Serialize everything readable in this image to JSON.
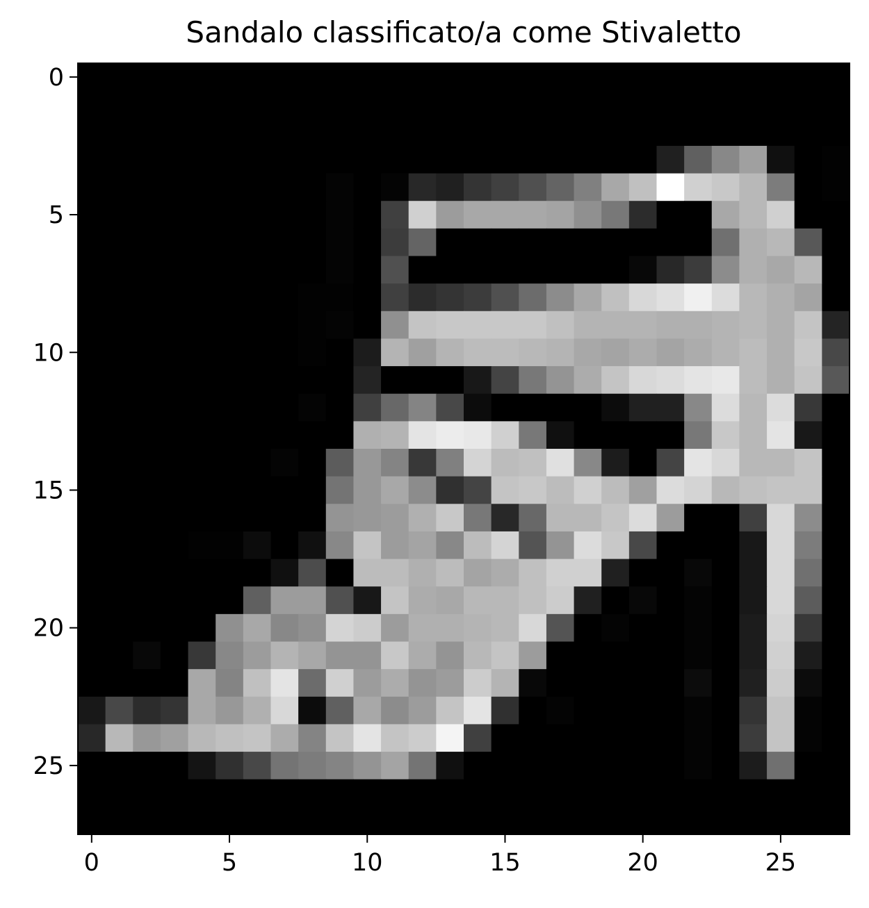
{
  "chart_data": {
    "type": "heatmap",
    "title": "Sandalo classificato/a come Stivaletto",
    "xlabel": "",
    "ylabel": "",
    "colormap": "gray",
    "vmin": 0,
    "vmax": 255,
    "xlim": [
      -0.5,
      27.5
    ],
    "ylim": [
      27.5,
      -0.5
    ],
    "x_ticks": [
      0,
      5,
      10,
      15,
      20,
      25
    ],
    "y_ticks": [
      0,
      5,
      10,
      15,
      20,
      25
    ],
    "x_tick_labels": [
      "0",
      "5",
      "10",
      "15",
      "20",
      "25"
    ],
    "y_tick_labels": [
      "0",
      "5",
      "10",
      "15",
      "20",
      "25"
    ],
    "grid": false,
    "legend": "none",
    "values": [
      [
        0,
        0,
        0,
        0,
        0,
        0,
        0,
        0,
        0,
        0,
        0,
        0,
        0,
        0,
        0,
        0,
        0,
        0,
        0,
        0,
        0,
        0,
        0,
        0,
        0,
        0,
        0,
        0
      ],
      [
        0,
        0,
        0,
        0,
        0,
        0,
        0,
        0,
        0,
        0,
        0,
        0,
        0,
        0,
        0,
        0,
        0,
        0,
        0,
        0,
        0,
        0,
        0,
        0,
        0,
        0,
        0,
        0
      ],
      [
        0,
        0,
        0,
        0,
        0,
        0,
        0,
        0,
        0,
        0,
        0,
        0,
        0,
        0,
        0,
        0,
        0,
        0,
        0,
        0,
        0,
        0,
        0,
        0,
        0,
        0,
        0,
        0
      ],
      [
        0,
        0,
        0,
        0,
        0,
        0,
        0,
        0,
        0,
        0,
        0,
        0,
        0,
        0,
        0,
        0,
        0,
        0,
        0,
        0,
        0,
        32,
        96,
        136,
        160,
        16,
        0,
        2
      ],
      [
        0,
        0,
        0,
        0,
        0,
        0,
        0,
        0,
        0,
        4,
        0,
        4,
        40,
        32,
        52,
        64,
        80,
        100,
        128,
        168,
        192,
        255,
        208,
        200,
        184,
        124,
        0,
        2
      ],
      [
        0,
        0,
        0,
        0,
        0,
        0,
        0,
        0,
        0,
        4,
        0,
        64,
        208,
        156,
        168,
        168,
        168,
        164,
        144,
        120,
        44,
        0,
        0,
        168,
        184,
        208,
        0,
        0
      ],
      [
        0,
        0,
        0,
        0,
        0,
        0,
        0,
        0,
        0,
        4,
        0,
        60,
        100,
        0,
        0,
        0,
        0,
        0,
        0,
        0,
        0,
        0,
        0,
        112,
        176,
        184,
        88,
        0
      ],
      [
        0,
        0,
        0,
        0,
        0,
        0,
        0,
        0,
        0,
        4,
        0,
        80,
        0,
        0,
        0,
        0,
        0,
        0,
        0,
        0,
        8,
        40,
        60,
        140,
        176,
        168,
        184,
        0
      ],
      [
        0,
        0,
        0,
        0,
        0,
        0,
        0,
        0,
        2,
        2,
        0,
        64,
        44,
        52,
        60,
        80,
        108,
        140,
        168,
        192,
        216,
        224,
        240,
        220,
        184,
        176,
        164,
        0
      ],
      [
        0,
        0,
        0,
        0,
        0,
        0,
        0,
        0,
        2,
        4,
        0,
        144,
        196,
        200,
        200,
        200,
        200,
        192,
        180,
        180,
        180,
        176,
        176,
        180,
        184,
        176,
        196,
        36
      ],
      [
        0,
        0,
        0,
        0,
        0,
        0,
        0,
        0,
        2,
        0,
        28,
        180,
        160,
        180,
        188,
        188,
        184,
        180,
        168,
        164,
        172,
        164,
        172,
        180,
        188,
        176,
        200,
        72
      ],
      [
        0,
        0,
        0,
        0,
        0,
        0,
        0,
        0,
        0,
        0,
        36,
        0,
        0,
        0,
        24,
        68,
        120,
        148,
        172,
        196,
        216,
        220,
        228,
        232,
        188,
        176,
        196,
        88
      ],
      [
        0,
        0,
        0,
        0,
        0,
        0,
        0,
        0,
        4,
        0,
        64,
        104,
        132,
        72,
        12,
        0,
        0,
        0,
        0,
        12,
        32,
        32,
        136,
        220,
        184,
        220,
        56,
        0
      ],
      [
        0,
        0,
        0,
        0,
        0,
        0,
        0,
        0,
        0,
        0,
        176,
        180,
        228,
        236,
        232,
        208,
        120,
        16,
        0,
        0,
        0,
        0,
        120,
        200,
        184,
        228,
        24,
        0
      ],
      [
        0,
        0,
        0,
        0,
        0,
        0,
        0,
        4,
        0,
        92,
        152,
        132,
        56,
        128,
        212,
        188,
        192,
        224,
        136,
        28,
        0,
        68,
        228,
        216,
        184,
        184,
        196,
        0
      ],
      [
        0,
        0,
        0,
        0,
        0,
        0,
        0,
        0,
        0,
        116,
        152,
        168,
        140,
        48,
        68,
        196,
        200,
        188,
        208,
        188,
        160,
        220,
        212,
        184,
        192,
        196,
        196,
        0
      ],
      [
        0,
        0,
        0,
        0,
        0,
        0,
        0,
        0,
        0,
        148,
        152,
        156,
        176,
        200,
        120,
        40,
        104,
        184,
        184,
        196,
        220,
        156,
        0,
        0,
        64,
        216,
        140,
        0
      ],
      [
        0,
        0,
        0,
        0,
        2,
        2,
        12,
        0,
        16,
        136,
        196,
        156,
        164,
        136,
        188,
        212,
        84,
        148,
        220,
        200,
        72,
        0,
        0,
        0,
        24,
        216,
        124,
        0
      ],
      [
        0,
        0,
        0,
        0,
        0,
        0,
        0,
        16,
        76,
        0,
        188,
        188,
        176,
        188,
        164,
        172,
        192,
        208,
        208,
        32,
        0,
        0,
        8,
        0,
        24,
        216,
        112,
        0
      ],
      [
        0,
        0,
        0,
        0,
        0,
        0,
        96,
        156,
        156,
        80,
        24,
        196,
        172,
        168,
        184,
        184,
        192,
        204,
        32,
        0,
        8,
        0,
        4,
        0,
        24,
        216,
        92,
        0
      ],
      [
        0,
        0,
        0,
        0,
        0,
        144,
        168,
        136,
        144,
        212,
        204,
        156,
        176,
        176,
        180,
        184,
        216,
        84,
        0,
        4,
        0,
        0,
        4,
        0,
        28,
        212,
        56,
        0
      ],
      [
        0,
        0,
        8,
        0,
        56,
        136,
        156,
        180,
        168,
        148,
        148,
        200,
        172,
        148,
        184,
        196,
        156,
        0,
        0,
        0,
        0,
        0,
        4,
        0,
        28,
        208,
        28,
        0
      ],
      [
        0,
        0,
        0,
        0,
        168,
        132,
        192,
        228,
        108,
        208,
        156,
        172,
        148,
        156,
        204,
        180,
        8,
        0,
        0,
        0,
        0,
        0,
        12,
        0,
        32,
        204,
        12,
        0
      ],
      [
        24,
        72,
        44,
        52,
        168,
        152,
        176,
        216,
        12,
        96,
        168,
        140,
        156,
        196,
        228,
        48,
        0,
        4,
        0,
        0,
        0,
        0,
        4,
        0,
        52,
        196,
        4,
        0
      ],
      [
        40,
        184,
        152,
        160,
        184,
        192,
        196,
        172,
        132,
        196,
        228,
        196,
        204,
        244,
        64,
        0,
        0,
        0,
        0,
        0,
        0,
        0,
        4,
        0,
        60,
        196,
        4,
        0
      ],
      [
        0,
        0,
        0,
        0,
        20,
        48,
        72,
        116,
        124,
        132,
        148,
        164,
        116,
        16,
        0,
        0,
        0,
        0,
        0,
        0,
        0,
        0,
        4,
        0,
        28,
        112,
        0,
        0
      ],
      [
        0,
        0,
        0,
        0,
        0,
        0,
        0,
        0,
        0,
        0,
        0,
        0,
        0,
        0,
        0,
        0,
        0,
        0,
        0,
        0,
        0,
        0,
        0,
        0,
        0,
        0,
        0,
        0
      ],
      [
        0,
        0,
        0,
        0,
        0,
        0,
        0,
        0,
        0,
        0,
        0,
        0,
        0,
        0,
        0,
        0,
        0,
        0,
        0,
        0,
        0,
        0,
        0,
        0,
        0,
        0,
        0,
        0
      ]
    ]
  }
}
